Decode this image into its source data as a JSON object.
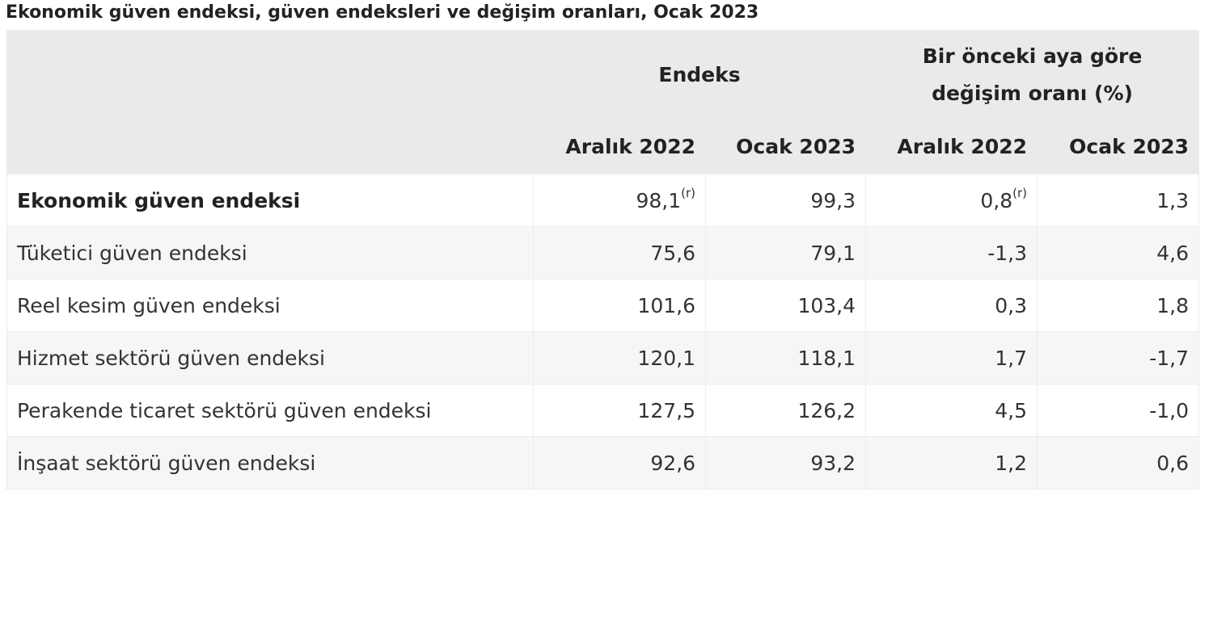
{
  "title": "Ekonomik güven endeksi, güven endeksleri ve değişim oranları, Ocak 2023",
  "header": {
    "group_index": "Endeks",
    "group_change_line1": "Bir önceki aya göre",
    "group_change_line2": "değişim oranı (%)",
    "col_1": "Aralık 2022",
    "col_2": "Ocak 2023",
    "col_3": "Aralık 2022",
    "col_4": "Ocak 2023"
  },
  "rows": [
    {
      "label": "Ekonomik güven endeksi",
      "v1": "98,1",
      "v1_note": "(r)",
      "v2": "99,3",
      "v3": "0,8",
      "v3_note": "(r)",
      "v4": "1,3"
    },
    {
      "label": "Tüketici güven endeksi",
      "v1": "75,6",
      "v2": "79,1",
      "v3": "-1,3",
      "v4": "4,6"
    },
    {
      "label": "Reel kesim güven endeksi",
      "v1": "101,6",
      "v2": "103,4",
      "v3": "0,3",
      "v4": "1,8"
    },
    {
      "label": "Hizmet sektörü güven endeksi",
      "v1": "120,1",
      "v2": "118,1",
      "v3": "1,7",
      "v4": "-1,7"
    },
    {
      "label": "Perakende ticaret sektörü güven endeksi",
      "v1": "127,5",
      "v2": "126,2",
      "v3": "4,5",
      "v4": "-1,0"
    },
    {
      "label": "İnşaat sektörü güven endeksi",
      "v1": "92,6",
      "v2": "93,2",
      "v3": "1,2",
      "v4": "0,6"
    }
  ]
}
